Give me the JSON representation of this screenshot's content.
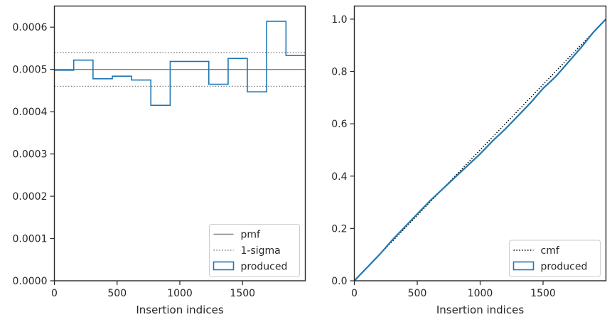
{
  "chart_data": [
    {
      "type": "line",
      "step": true,
      "xlabel": "Insertion indices",
      "ylabel": "",
      "xlim": [
        0,
        2000
      ],
      "ylim": [
        0,
        0.00065
      ],
      "x_ticks": [
        0,
        500,
        1000,
        1500
      ],
      "x_tick_labels": [
        "0",
        "500",
        "1000",
        "1500"
      ],
      "y_ticks": [
        0,
        0.0001,
        0.0002,
        0.0003,
        0.0004,
        0.0005,
        0.0006
      ],
      "y_tick_labels": [
        "0.0000",
        "0.0001",
        "0.0002",
        "0.0003",
        "0.0004",
        "0.0005",
        "0.0006"
      ],
      "reference_lines": [
        {
          "name": "pmf",
          "y": 0.0005,
          "style": "solid",
          "color": "#808080"
        },
        {
          "name": "1-sigma",
          "y": 0.00054,
          "style": "dotted",
          "color": "#808080"
        },
        {
          "name": "1-sigma",
          "y": 0.00046,
          "style": "dotted",
          "color": "#808080",
          "legend": false
        }
      ],
      "histogram": {
        "name": "produced",
        "color": "#1f77b4",
        "bin_edges": [
          0,
          154,
          308,
          462,
          615,
          769,
          923,
          1077,
          1231,
          1385,
          1538,
          1692,
          1846,
          2000
        ],
        "values": [
          0.000498,
          0.000522,
          0.000478,
          0.000484,
          0.000475,
          0.000415,
          0.000519,
          0.000519,
          0.000465,
          0.000526,
          0.000447,
          0.000614,
          0.000533
        ]
      },
      "legend": {
        "position": "lower right",
        "entries": [
          "pmf",
          "1-sigma",
          "produced"
        ]
      }
    },
    {
      "type": "line",
      "xlabel": "Insertion indices",
      "ylabel": "",
      "xlim": [
        0,
        2000
      ],
      "ylim": [
        0,
        1.05
      ],
      "x_ticks": [
        0,
        500,
        1000,
        1500
      ],
      "x_tick_labels": [
        "0",
        "500",
        "1000",
        "1500"
      ],
      "y_ticks": [
        0,
        0.2,
        0.4,
        0.6,
        0.8,
        1.0
      ],
      "y_tick_labels": [
        "0.0",
        "0.2",
        "0.4",
        "0.6",
        "0.8",
        "1.0"
      ],
      "series": [
        {
          "name": "cmf",
          "style": "dotted",
          "color": "#000000",
          "x": [
            0,
            2000
          ],
          "y": [
            0,
            1.0
          ]
        },
        {
          "name": "produced",
          "style": "solid",
          "color": "#1f77b4",
          "x": [
            0,
            100,
            200,
            300,
            400,
            500,
            600,
            700,
            800,
            900,
            1000,
            1100,
            1200,
            1300,
            1400,
            1500,
            1600,
            1700,
            1800,
            1900,
            2000
          ],
          "y": [
            0,
            0.05,
            0.1,
            0.155,
            0.205,
            0.255,
            0.305,
            0.35,
            0.395,
            0.44,
            0.485,
            0.535,
            0.58,
            0.63,
            0.68,
            0.735,
            0.78,
            0.835,
            0.89,
            0.95,
            1.0
          ]
        }
      ],
      "legend": {
        "position": "lower right",
        "entries": [
          "cmf",
          "produced"
        ]
      }
    }
  ]
}
